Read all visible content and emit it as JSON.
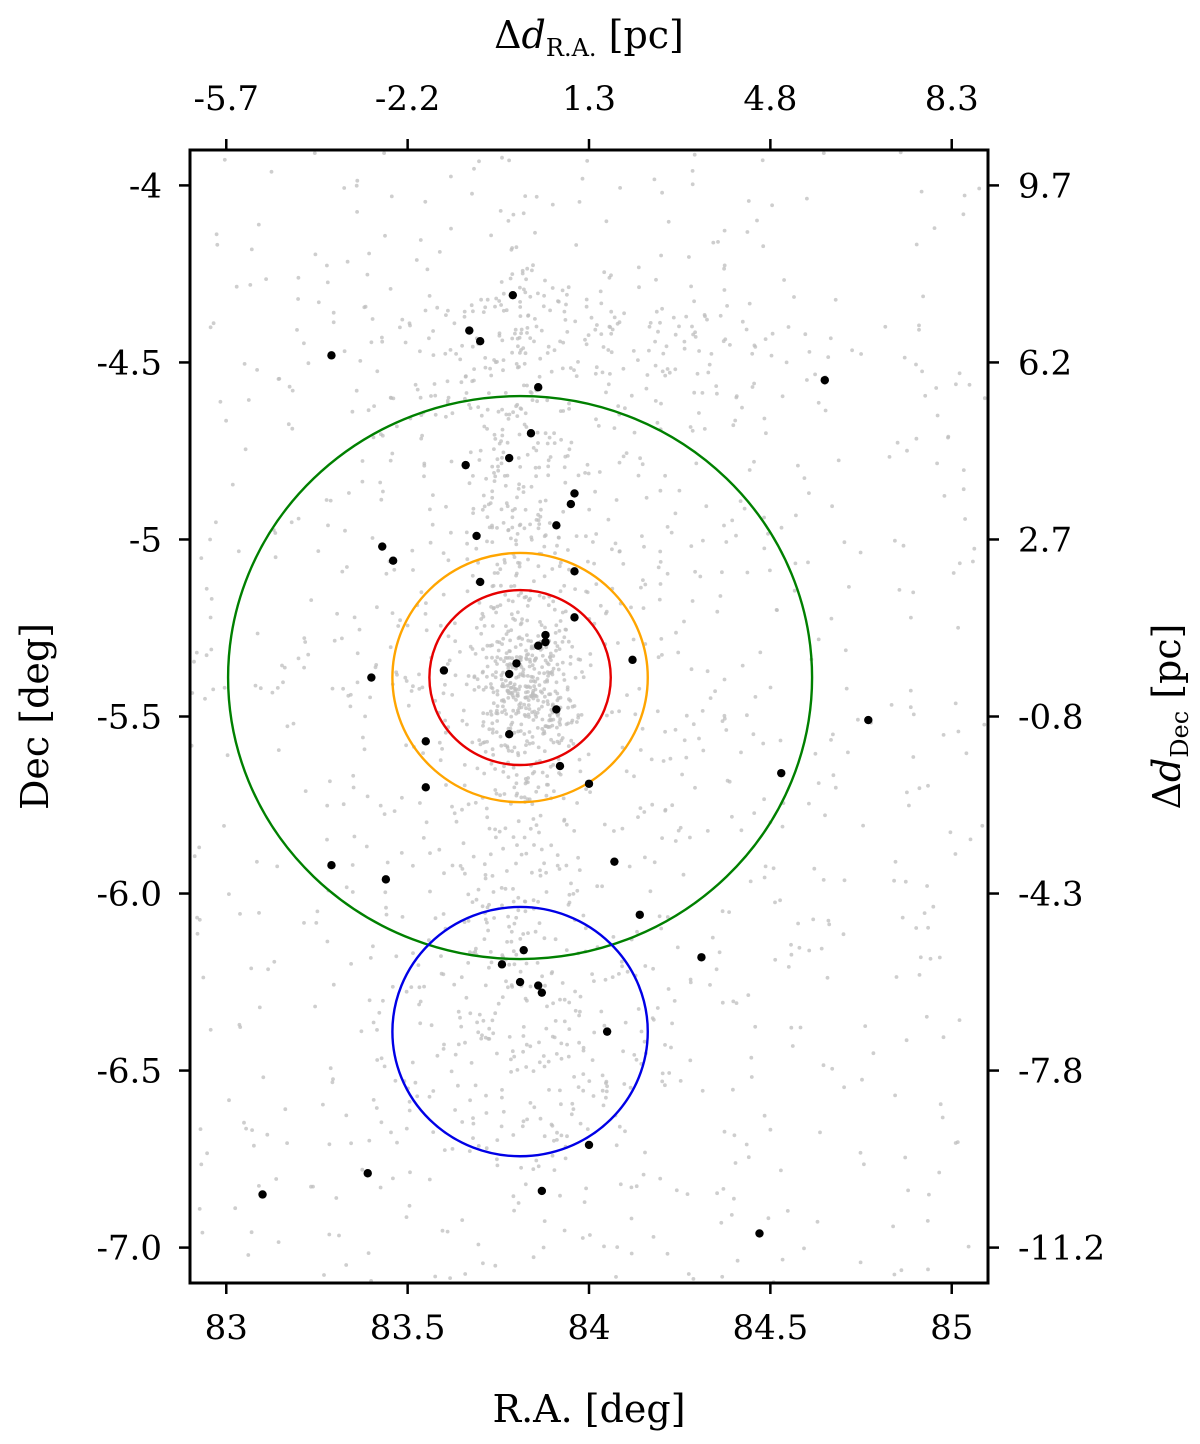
{
  "chart_data": {
    "type": "scatter",
    "xlabel": "R.A. [deg]",
    "ylabel": "Dec [deg]",
    "top_xlabel": {
      "prefix": "Δ",
      "var": "d",
      "sub": "R.A.",
      "unit": " [pc]"
    },
    "right_ylabel": {
      "prefix": "Δ",
      "var": "d",
      "sub": "Dec",
      "unit": " [pc]"
    },
    "xlim": [
      82.9,
      85.1
    ],
    "ylim": [
      -7.1,
      -3.9
    ],
    "bottom_ticks": [
      {
        "value": 83,
        "label": "83"
      },
      {
        "value": 83.5,
        "label": "83.5"
      },
      {
        "value": 84,
        "label": "84"
      },
      {
        "value": 84.5,
        "label": "84.5"
      },
      {
        "value": 85,
        "label": "85"
      }
    ],
    "left_ticks": [
      {
        "value": -4.0,
        "label": "-4"
      },
      {
        "value": -4.5,
        "label": "-4.5"
      },
      {
        "value": -5.0,
        "label": "-5"
      },
      {
        "value": -5.5,
        "label": "-5.5"
      },
      {
        "value": -6.0,
        "label": "-6.0"
      },
      {
        "value": -6.5,
        "label": "-6.5"
      },
      {
        "value": -7.0,
        "label": "-7.0"
      }
    ],
    "top_ticks": [
      {
        "value": 83.0,
        "label": "-5.7"
      },
      {
        "value": 83.5,
        "label": "-2.2"
      },
      {
        "value": 84.0,
        "label": "1.3"
      },
      {
        "value": 84.5,
        "label": "4.8"
      },
      {
        "value": 85.0,
        "label": "8.3"
      }
    ],
    "right_ticks": [
      {
        "value": -4.0,
        "label": "9.7"
      },
      {
        "value": -4.5,
        "label": "6.2"
      },
      {
        "value": -5.0,
        "label": "2.7"
      },
      {
        "value": -5.5,
        "label": "-0.8"
      },
      {
        "value": -6.0,
        "label": "-4.3"
      },
      {
        "value": -6.5,
        "label": "-7.8"
      },
      {
        "value": -7.0,
        "label": "-11.2"
      }
    ],
    "circles": [
      {
        "color": "#008000",
        "center": [
          83.81,
          -5.39
        ],
        "r_x": 0.805,
        "r_y": 0.795
      },
      {
        "color": "#ffa500",
        "center": [
          83.81,
          -5.39
        ],
        "r_x": 0.352,
        "r_y": 0.352
      },
      {
        "color": "#e60000",
        "center": [
          83.81,
          -5.39
        ],
        "r_x": 0.25,
        "r_y": 0.247
      },
      {
        "color": "#0000e6",
        "center": [
          83.81,
          -6.39
        ],
        "r_x": 0.352,
        "r_y": 0.352
      }
    ],
    "series": [
      {
        "color": "#000000",
        "points": [
          [
            83.79,
            -4.31
          ],
          [
            83.67,
            -4.41
          ],
          [
            83.7,
            -4.44
          ],
          [
            83.29,
            -4.48
          ],
          [
            83.86,
            -4.57
          ],
          [
            84.65,
            -4.55
          ],
          [
            83.84,
            -4.7
          ],
          [
            83.78,
            -4.77
          ],
          [
            83.66,
            -4.79
          ],
          [
            83.96,
            -4.87
          ],
          [
            83.95,
            -4.9
          ],
          [
            83.91,
            -4.96
          ],
          [
            83.69,
            -4.99
          ],
          [
            83.43,
            -5.02
          ],
          [
            83.46,
            -5.06
          ],
          [
            83.96,
            -5.09
          ],
          [
            83.7,
            -5.12
          ],
          [
            83.96,
            -5.22
          ],
          [
            83.88,
            -5.27
          ],
          [
            83.88,
            -5.29
          ],
          [
            83.86,
            -5.3
          ],
          [
            84.12,
            -5.34
          ],
          [
            83.8,
            -5.35
          ],
          [
            83.6,
            -5.37
          ],
          [
            83.78,
            -5.38
          ],
          [
            83.4,
            -5.39
          ],
          [
            83.91,
            -5.48
          ],
          [
            84.77,
            -5.51
          ],
          [
            83.78,
            -5.55
          ],
          [
            83.55,
            -5.57
          ],
          [
            83.92,
            -5.64
          ],
          [
            84.53,
            -5.66
          ],
          [
            84.0,
            -5.69
          ],
          [
            83.55,
            -5.7
          ],
          [
            83.29,
            -5.92
          ],
          [
            84.07,
            -5.91
          ],
          [
            83.44,
            -5.96
          ],
          [
            84.14,
            -6.06
          ],
          [
            84.31,
            -6.18
          ],
          [
            83.82,
            -6.16
          ],
          [
            83.76,
            -6.2
          ],
          [
            83.81,
            -6.25
          ],
          [
            83.86,
            -6.26
          ],
          [
            83.87,
            -6.28
          ],
          [
            84.05,
            -6.39
          ],
          [
            84.0,
            -6.71
          ],
          [
            83.39,
            -6.79
          ],
          [
            83.1,
            -6.85
          ],
          [
            83.87,
            -6.84
          ],
          [
            84.47,
            -6.96
          ]
        ]
      },
      {
        "color": "#bdbdbd",
        "distribution": [
          {
            "count": 600,
            "cx": 83.0,
            "cy": -5.5,
            "sx": 1.1,
            "sy": 1.6,
            "kind": "uniform"
          },
          {
            "count": 420,
            "cx": 83.8,
            "cy": -5.3,
            "sx": 0.09,
            "sy": 0.65,
            "kind": "gauss"
          },
          {
            "count": 260,
            "cx": 83.82,
            "cy": -5.42,
            "sx": 0.07,
            "sy": 0.08,
            "kind": "gauss"
          },
          {
            "count": 520,
            "cx": 83.85,
            "cy": -5.3,
            "sx": 0.38,
            "sy": 0.62,
            "kind": "gauss"
          },
          {
            "count": 200,
            "cx": 83.82,
            "cy": -6.45,
            "sx": 0.22,
            "sy": 0.25,
            "kind": "gauss"
          },
          {
            "count": 140,
            "cx": 84.0,
            "cy": -4.45,
            "sx": 0.35,
            "sy": 0.12,
            "kind": "gauss"
          }
        ]
      }
    ]
  }
}
